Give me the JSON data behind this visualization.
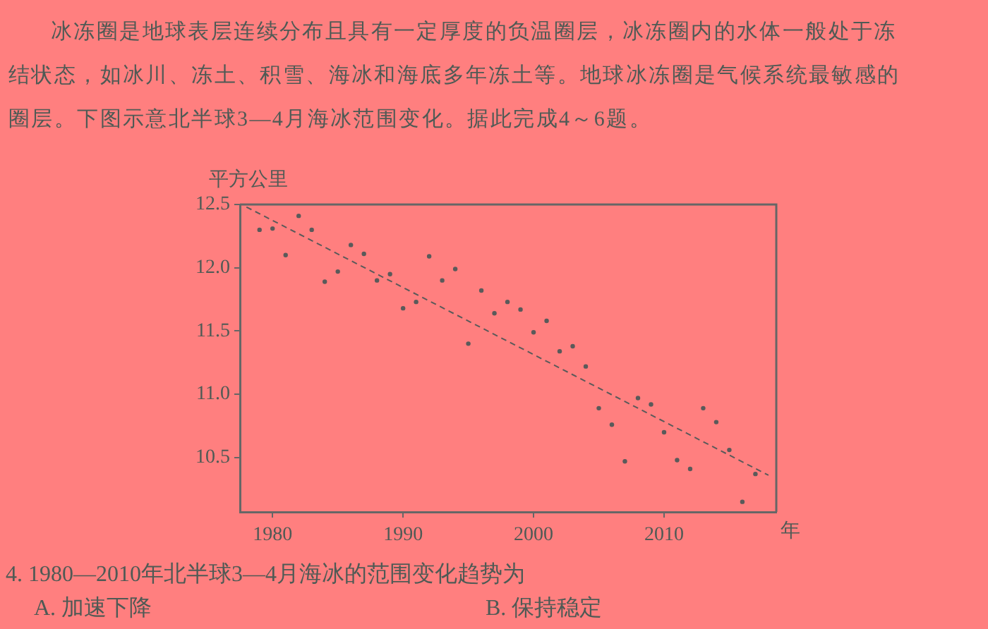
{
  "chart_data": {
    "type": "scatter",
    "ylabel": "平方公里",
    "xlabel": "年",
    "annotations": [
      "冰冻圈是地球表层连续分布且具有一定厚度的负温圈层，冰冻圈内的水体一般处于冻",
      "结状态，如冰川、冻土、积雪、海冰和海底多年冻土等。地球冰冻圈是气候系统最敏感的",
      "圈层。下图示意北半球3—4月海冰范围变化。据此完成4～6题。",
      "4. 1980—2010年北半球3—4月海冰的范围变化趋势为",
      "A. 加速下降",
      "B. 保持稳定"
    ],
    "series": [
      {
        "type": "scatter",
        "color": "#5a5a5a",
        "marker": "circle",
        "x": [
          1979,
          1980,
          1981,
          1982,
          1983,
          1984,
          1985,
          1986,
          1987,
          1988,
          1989,
          1990,
          1991,
          1992,
          1993,
          1994,
          1995,
          1996,
          1997,
          1998,
          1999,
          2000,
          2001,
          2002,
          2003,
          2004,
          2005,
          2006,
          2007,
          2008,
          2009,
          2010,
          2011,
          2012,
          2013,
          2014,
          2015,
          2016,
          2017
        ],
        "values": [
          12.3,
          12.31,
          12.1,
          12.41,
          12.3,
          11.89,
          11.97,
          12.18,
          12.11,
          11.9,
          11.95,
          11.68,
          11.73,
          12.09,
          11.9,
          11.99,
          11.4,
          11.82,
          11.64,
          11.73,
          11.67,
          11.49,
          11.58,
          11.34,
          11.38,
          11.22,
          10.89,
          10.76,
          10.47,
          10.97,
          10.92,
          10.7,
          10.48,
          10.41,
          10.89,
          10.78,
          10.56,
          10.15,
          10.37
        ]
      },
      {
        "type": "line",
        "color": "#5a5a5a",
        "line_style": "dashed",
        "marker": "none",
        "x": [
          1978,
          2018
        ],
        "values": [
          12.48,
          10.36
        ]
      }
    ],
    "xlim": [
      1977.5,
      2018.6
    ],
    "xticks": [
      1980,
      1990,
      2000,
      2010
    ],
    "ylim": [
      10.07,
      12.5
    ],
    "yticks": [
      10.5,
      {
        "value": 11,
        "label": "11.0"
      },
      11.5,
      {
        "value": 12,
        "label": "12.0"
      },
      12.5
    ],
    "grid": false,
    "legend": false
  }
}
